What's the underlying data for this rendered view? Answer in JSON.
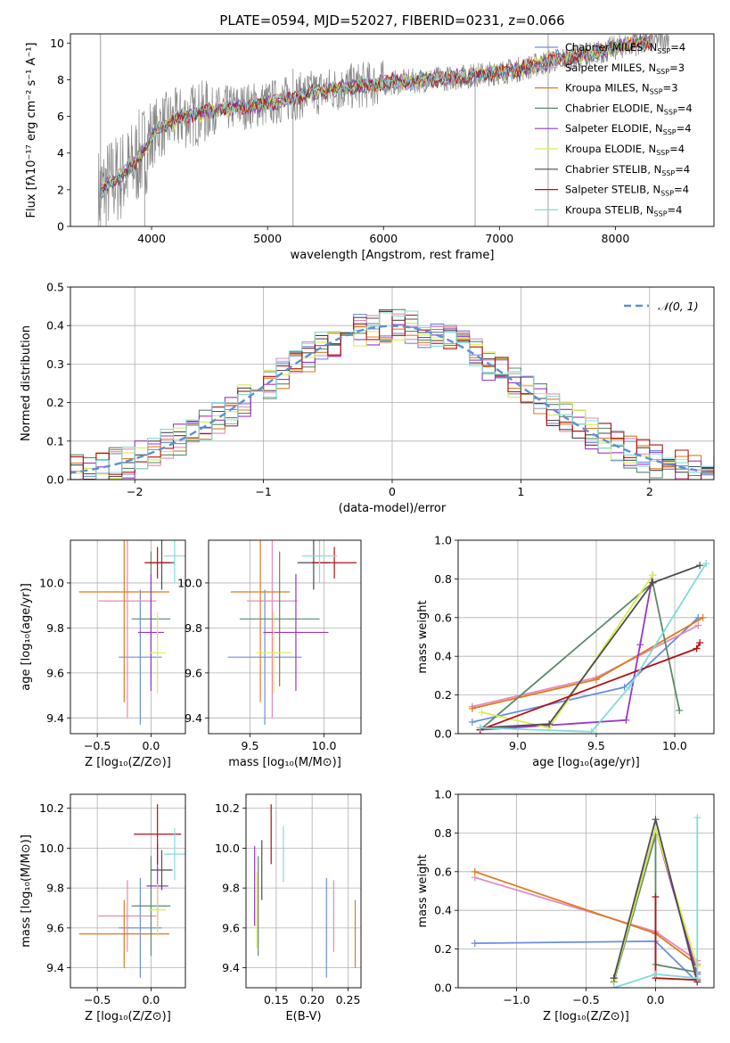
{
  "title": "PLATE=0594, MJD=52027, FIBERID=0231, z=0.066",
  "colors": {
    "Chabrier MILES": "#6b8ee0",
    "Salpeter MILES": "#e58ab8",
    "Kroupa MILES": "#de7a1e",
    "Chabrier ELODIE": "#5a8a68",
    "Salpeter ELODIE": "#9a36c6",
    "Kroupa ELODIE": "#dceb4c",
    "Chabrier STELIB": "#4d4d4d",
    "Salpeter STELIB": "#b01212",
    "Kroupa STELIB": "#7fdcd8",
    "data": "#888888",
    "gauss": "#5e8fd4"
  },
  "chart_data": [
    {
      "id": "spectrum",
      "type": "line",
      "title": "PLATE=0594, MJD=52027, FIBERID=0231, z=0.066",
      "xlabel": "wavelength [Angstrom, rest frame]",
      "ylabel": "Flux [fλ10⁻¹⁷ erg cm⁻² s⁻¹ A⁻¹]",
      "xlim": [
        3300,
        8850
      ],
      "ylim": [
        0,
        10.5
      ],
      "xticks": [
        4000,
        5000,
        6000,
        7000,
        8000
      ],
      "yticks": [
        0,
        2,
        4,
        6,
        8,
        10
      ],
      "continuum": {
        "x": [
          3550,
          3650,
          3800,
          3950,
          4050,
          4300,
          4600,
          5000,
          5400,
          5800,
          6200,
          6600,
          7000,
          7200,
          7500,
          7800,
          8100,
          8300,
          8450
        ],
        "y": [
          1.8,
          2.4,
          3.0,
          4.3,
          5.4,
          6.0,
          6.4,
          6.7,
          7.3,
          7.7,
          7.9,
          8.1,
          8.4,
          8.6,
          9.1,
          9.4,
          9.9,
          10.1,
          10.3
        ]
      },
      "legend": [
        {
          "name": "Chabrier MILES",
          "nssp": "4"
        },
        {
          "name": "Salpeter MILES",
          "nssp": "3"
        },
        {
          "name": "Kroupa MILES",
          "nssp": "3"
        },
        {
          "name": "Chabrier ELODIE",
          "nssp": "4"
        },
        {
          "name": "Salpeter ELODIE",
          "nssp": "4"
        },
        {
          "name": "Kroupa ELODIE",
          "nssp": "4"
        },
        {
          "name": "Chabrier STELIB",
          "nssp": "4"
        },
        {
          "name": "Salpeter STELIB",
          "nssp": "4"
        },
        {
          "name": "Kroupa STELIB",
          "nssp": "4"
        }
      ],
      "legend_placement": "right",
      "grid": false
    },
    {
      "id": "residuals",
      "type": "histogram",
      "xlabel": "(data-model)/error",
      "ylabel": "Normed distribution",
      "xlim": [
        -2.5,
        2.5
      ],
      "ylim": [
        0,
        0.5
      ],
      "xticks": [
        -2,
        -1,
        0,
        1,
        2
      ],
      "yticks": [
        0.0,
        0.1,
        0.2,
        0.3,
        0.4,
        0.5
      ],
      "bin_width": 0.1,
      "gauss_label": "𝒩(0, 1)",
      "legend_placement": "top-right",
      "grid": true
    },
    {
      "id": "age-vs-Z",
      "type": "errorbar",
      "xlabel": "Z [log₁₀(Z/Z⊙)]",
      "ylabel": "age  [log₁₀(age/yr)]",
      "xlim": [
        -0.75,
        0.32
      ],
      "ylim": [
        9.33,
        10.19
      ],
      "xticks": [
        -0.5,
        0.0
      ],
      "yticks": [
        9.4,
        9.6,
        9.8,
        10.0
      ],
      "points": [
        {
          "model": "Chabrier MILES",
          "x": -0.1,
          "y": 9.67,
          "xerr": 0.2,
          "yerr": 0.3
        },
        {
          "model": "Salpeter MILES",
          "x": -0.22,
          "y": 9.92,
          "xerr": 0.27,
          "yerr": 0.52
        },
        {
          "model": "Kroupa MILES",
          "x": -0.25,
          "y": 9.96,
          "xerr": 0.42,
          "yerr": 0.49
        },
        {
          "model": "Chabrier ELODIE",
          "x": 0.0,
          "y": 9.84,
          "xerr": 0.18,
          "yerr": 0.3
        },
        {
          "model": "Salpeter ELODIE",
          "x": 0.0,
          "y": 9.78,
          "xerr": 0.12,
          "yerr": 0.26
        },
        {
          "model": "Kroupa ELODIE",
          "x": 0.06,
          "y": 9.69,
          "xerr": 0.08,
          "yerr": 0.18
        },
        {
          "model": "Chabrier STELIB",
          "x": 0.1,
          "y": 10.09,
          "xerr": 0.12,
          "yerr": 0.12
        },
        {
          "model": "Salpeter STELIB",
          "x": 0.06,
          "y": 10.09,
          "xerr": 0.12,
          "yerr": 0.07
        },
        {
          "model": "Kroupa STELIB",
          "x": 0.22,
          "y": 10.12,
          "xerr": 0.1,
          "yerr": 0.12
        }
      ],
      "grid": true
    },
    {
      "id": "age-vs-mass",
      "type": "errorbar",
      "xlabel": "mass [log₁₀(M/M⊙)]",
      "ylabel": "",
      "xlim": [
        9.22,
        10.25
      ],
      "ylim": [
        9.33,
        10.19
      ],
      "xticks": [
        9.5,
        10.0
      ],
      "yticks": [
        9.4,
        9.6,
        9.8,
        10.0
      ],
      "points": [
        {
          "model": "Chabrier MILES",
          "x": 9.6,
          "y": 9.67,
          "xerr": 0.25,
          "yerr": 0.3
        },
        {
          "model": "Salpeter MILES",
          "x": 9.65,
          "y": 9.92,
          "xerr": 0.17,
          "yerr": 0.52
        },
        {
          "model": "Kroupa MILES",
          "x": 9.57,
          "y": 9.96,
          "xerr": 0.2,
          "yerr": 0.49
        },
        {
          "model": "Chabrier ELODIE",
          "x": 9.7,
          "y": 9.84,
          "xerr": 0.27,
          "yerr": 0.3
        },
        {
          "model": "Salpeter ELODIE",
          "x": 9.81,
          "y": 9.78,
          "xerr": 0.22,
          "yerr": 0.26
        },
        {
          "model": "Kroupa ELODIE",
          "x": 9.66,
          "y": 9.69,
          "xerr": 0.12,
          "yerr": 0.18
        },
        {
          "model": "Chabrier STELIB",
          "x": 9.93,
          "y": 10.09,
          "xerr": 0.11,
          "yerr": 0.12
        },
        {
          "model": "Salpeter STELIB",
          "x": 10.07,
          "y": 10.09,
          "xerr": 0.15,
          "yerr": 0.07
        },
        {
          "model": "Kroupa STELIB",
          "x": 9.97,
          "y": 10.12,
          "xerr": 0.12,
          "yerr": 0.12
        }
      ],
      "grid": true
    },
    {
      "id": "massweight-vs-age",
      "type": "line",
      "xlabel": "age  [log₁₀(age/yr)]",
      "ylabel": "mass weight",
      "xlim": [
        8.62,
        10.25
      ],
      "ylim": [
        0,
        1
      ],
      "xticks": [
        9.0,
        9.5,
        10.0
      ],
      "yticks": [
        0.0,
        0.2,
        0.4,
        0.6,
        0.8,
        1.0
      ],
      "series": [
        {
          "model": "Chabrier MILES",
          "x": [
            8.71,
            9.68,
            10.15
          ],
          "y": [
            0.06,
            0.24,
            0.6
          ]
        },
        {
          "model": "Salpeter MILES",
          "x": [
            8.71,
            9.5,
            10.15
          ],
          "y": [
            0.14,
            0.29,
            0.56
          ]
        },
        {
          "model": "Kroupa MILES",
          "x": [
            8.71,
            9.5,
            10.18
          ],
          "y": [
            0.13,
            0.28,
            0.6
          ]
        },
        {
          "model": "Chabrier ELODIE",
          "x": [
            8.76,
            9.86,
            10.03
          ],
          "y": [
            0.02,
            0.78,
            0.12
          ]
        },
        {
          "model": "Salpeter ELODIE",
          "x": [
            8.76,
            9.69,
            9.78,
            9.86
          ],
          "y": [
            0.02,
            0.07,
            0.46,
            0.82
          ]
        },
        {
          "model": "Kroupa ELODIE",
          "x": [
            8.77,
            9.2,
            9.86
          ],
          "y": [
            0.11,
            0.03,
            0.82
          ]
        },
        {
          "model": "Chabrier STELIB",
          "x": [
            8.76,
            9.2,
            9.86,
            10.16
          ],
          "y": [
            0.03,
            0.05,
            0.78,
            0.87
          ]
        },
        {
          "model": "Salpeter STELIB",
          "x": [
            8.76,
            10.14,
            10.16
          ],
          "y": [
            0.02,
            0.44,
            0.47
          ]
        },
        {
          "model": "Kroupa STELIB",
          "x": [
            8.76,
            9.47,
            9.71,
            10.2
          ],
          "y": [
            0.03,
            0.01,
            0.24,
            0.88
          ]
        }
      ],
      "grid": true
    },
    {
      "id": "mass-vs-Z",
      "type": "errorbar",
      "xlabel": "Z [log₁₀(Z/Z⊙)]",
      "ylabel": "mass [log₁₀(M/M⊙)]",
      "xlim": [
        -0.75,
        0.32
      ],
      "ylim": [
        9.3,
        10.27
      ],
      "xticks": [
        -0.5,
        0.0
      ],
      "yticks": [
        9.4,
        9.6,
        9.8,
        10.0,
        10.2
      ],
      "points": [
        {
          "model": "Chabrier MILES",
          "x": -0.1,
          "y": 9.6,
          "xerr": 0.2,
          "yerr": 0.25
        },
        {
          "model": "Salpeter MILES",
          "x": -0.22,
          "y": 9.66,
          "xerr": 0.27,
          "yerr": 0.18
        },
        {
          "model": "Kroupa MILES",
          "x": -0.25,
          "y": 9.57,
          "xerr": 0.42,
          "yerr": 0.17
        },
        {
          "model": "Chabrier ELODIE",
          "x": 0.0,
          "y": 9.71,
          "xerr": 0.18,
          "yerr": 0.25
        },
        {
          "model": "Salpeter ELODIE",
          "x": 0.06,
          "y": 9.81,
          "xerr": 0.1,
          "yerr": 0.21
        },
        {
          "model": "Kroupa ELODIE",
          "x": 0.06,
          "y": 9.69,
          "xerr": 0.08,
          "yerr": 0.13
        },
        {
          "model": "Chabrier STELIB",
          "x": 0.1,
          "y": 9.89,
          "xerr": 0.1,
          "yerr": 0.1
        },
        {
          "model": "Salpeter STELIB",
          "x": 0.06,
          "y": 10.07,
          "xerr": 0.22,
          "yerr": 0.15
        },
        {
          "model": "Kroupa STELIB",
          "x": 0.22,
          "y": 9.97,
          "xerr": 0.1,
          "yerr": 0.13
        }
      ],
      "grid": true
    },
    {
      "id": "mass-vs-EBV",
      "type": "errorbar",
      "xlabel": "E(B-V)",
      "ylabel": "",
      "xlim": [
        0.108,
        0.268
      ],
      "ylim": [
        9.3,
        10.27
      ],
      "xticks": [
        0.15,
        0.2,
        0.25
      ],
      "yticks": [
        9.4,
        9.6,
        9.8,
        10.0,
        10.2
      ],
      "points": [
        {
          "model": "Chabrier MILES",
          "x": 0.22,
          "y": 9.6,
          "xerr": 0,
          "yerr": 0.25
        },
        {
          "model": "Salpeter MILES",
          "x": 0.23,
          "y": 9.66,
          "xerr": 0,
          "yerr": 0.18
        },
        {
          "model": "Kroupa MILES",
          "x": 0.26,
          "y": 9.57,
          "xerr": 0,
          "yerr": 0.17
        },
        {
          "model": "Chabrier ELODIE",
          "x": 0.125,
          "y": 9.71,
          "xerr": 0,
          "yerr": 0.25
        },
        {
          "model": "Salpeter ELODIE",
          "x": 0.12,
          "y": 9.81,
          "xerr": 0,
          "yerr": 0.2
        },
        {
          "model": "Kroupa ELODIE",
          "x": 0.123,
          "y": 9.69,
          "xerr": 0,
          "yerr": 0.19
        },
        {
          "model": "Chabrier STELIB",
          "x": 0.13,
          "y": 9.89,
          "xerr": 0,
          "yerr": 0.15
        },
        {
          "model": "Salpeter STELIB",
          "x": 0.143,
          "y": 10.07,
          "xerr": 0,
          "yerr": 0.15
        },
        {
          "model": "Kroupa STELIB",
          "x": 0.16,
          "y": 9.97,
          "xerr": 0,
          "yerr": 0.14
        }
      ],
      "grid": true
    },
    {
      "id": "massweight-vs-Z",
      "type": "line",
      "xlabel": "Z [log₁₀(Z/Z⊙)]",
      "ylabel": "mass weight",
      "xlim": [
        -1.42,
        0.42
      ],
      "ylim": [
        0,
        1
      ],
      "xticks": [
        -1.0,
        -0.5,
        0.0
      ],
      "yticks": [
        0.0,
        0.2,
        0.4,
        0.6,
        0.8,
        1.0
      ],
      "series": [
        {
          "model": "Chabrier MILES",
          "x": [
            -1.3,
            0.0,
            0.3
          ],
          "y": [
            0.23,
            0.24,
            0.03
          ]
        },
        {
          "model": "Salpeter MILES",
          "x": [
            -1.3,
            0.0,
            0.3
          ],
          "y": [
            0.57,
            0.29,
            0.14
          ]
        },
        {
          "model": "Kroupa MILES",
          "x": [
            -1.3,
            0.0,
            0.3
          ],
          "y": [
            0.6,
            0.28,
            0.12
          ]
        },
        {
          "model": "Chabrier ELODIE",
          "x": [
            -0.3,
            0.0,
            0.0,
            0.3
          ],
          "y": [
            0.03,
            0.79,
            0.12,
            0.08
          ]
        },
        {
          "model": "Salpeter ELODIE",
          "x": [
            -0.3,
            0.0,
            0.3
          ],
          "y": [
            0.05,
            0.82,
            0.07
          ]
        },
        {
          "model": "Kroupa ELODIE",
          "x": [
            -0.3,
            0.0,
            0.3
          ],
          "y": [
            0.04,
            0.82,
            0.11
          ]
        },
        {
          "model": "Chabrier STELIB",
          "x": [
            -0.3,
            0.0,
            0.3
          ],
          "y": [
            0.05,
            0.87,
            0.03
          ]
        },
        {
          "model": "Salpeter STELIB",
          "x": [
            0.0,
            0.0,
            0.3
          ],
          "y": [
            0.47,
            0.05,
            0.04
          ]
        },
        {
          "model": "Kroupa STELIB",
          "x": [
            -0.3,
            0.0,
            0.3,
            0.3
          ],
          "y": [
            0.0,
            0.07,
            0.05,
            0.88
          ]
        }
      ],
      "grid": true
    }
  ]
}
